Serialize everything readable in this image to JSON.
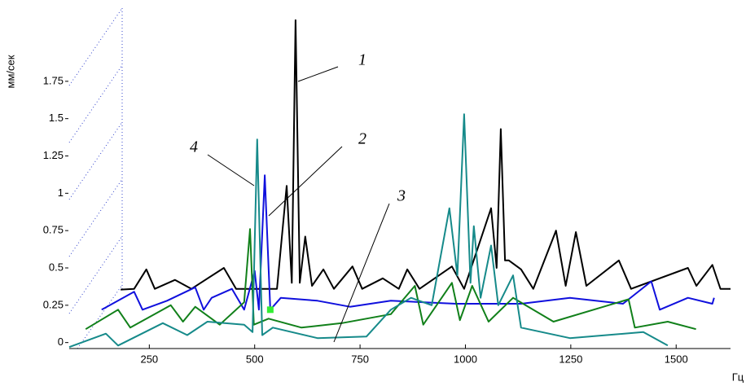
{
  "chart_data": {
    "type": "line",
    "y_label": "мм/сек",
    "x_label": "Гц",
    "xlim": [
      60,
      1629
    ],
    "ylim": [
      -0.04,
      2.24
    ],
    "xticks": [
      250,
      500,
      750,
      1000,
      1250,
      1500
    ],
    "yticks": [
      0,
      0.25,
      0.5,
      0.75,
      1,
      1.25,
      1.5,
      1.75
    ],
    "annotations": [
      "1",
      "2",
      "3",
      "4"
    ],
    "highlight_point": [
      1,
      12
    ],
    "highlight_color": "#33ee33",
    "series": [
      {
        "color": "#000000",
        "x": [
          182,
          214,
          243,
          263,
          311,
          350,
          427,
          456,
          553,
          576,
          588,
          597,
          607,
          620,
          636,
          663,
          688,
          732,
          755,
          804,
          842,
          862,
          891,
          968,
          997,
          1061,
          1074,
          1084,
          1094,
          1103,
          1132,
          1161,
          1215,
          1238,
          1262,
          1287,
          1364,
          1393,
          1528,
          1548,
          1586,
          1605,
          1629
        ],
        "values": [
          0.355,
          0.36,
          0.49,
          0.36,
          0.42,
          0.36,
          0.5,
          0.36,
          0.36,
          1.05,
          0.4,
          2.16,
          0.4,
          0.71,
          0.38,
          0.49,
          0.36,
          0.51,
          0.36,
          0.43,
          0.36,
          0.49,
          0.36,
          0.51,
          0.36,
          0.9,
          0.5,
          1.43,
          0.55,
          0.55,
          0.49,
          0.36,
          0.75,
          0.38,
          0.74,
          0.38,
          0.55,
          0.36,
          0.5,
          0.38,
          0.52,
          0.36,
          0.36
        ]
      },
      {
        "color": "#1010dd",
        "x": [
          137,
          214,
          234,
          292,
          359,
          379,
          398,
          446,
          475,
          500,
          510,
          524,
          537,
          562,
          649,
          726,
          823,
          978,
          1132,
          1248,
          1374,
          1441,
          1461,
          1528,
          1586,
          1590
        ],
        "values": [
          0.22,
          0.34,
          0.22,
          0.28,
          0.37,
          0.22,
          0.3,
          0.36,
          0.22,
          0.48,
          0.22,
          1.12,
          0.22,
          0.3,
          0.28,
          0.24,
          0.28,
          0.26,
          0.26,
          0.3,
          0.26,
          0.41,
          0.22,
          0.3,
          0.26,
          0.3
        ]
      },
      {
        "color": "#11801a",
        "x": [
          99,
          176,
          205,
          301,
          330,
          359,
          417,
          475,
          489,
          498,
          533,
          611,
          707,
          823,
          880,
          900,
          968,
          987,
          1016,
          1055,
          1113,
          1209,
          1387,
          1402,
          1480,
          1547
        ],
        "values": [
          0.09,
          0.22,
          0.1,
          0.25,
          0.14,
          0.24,
          0.12,
          0.27,
          0.76,
          0.12,
          0.16,
          0.1,
          0.13,
          0.19,
          0.38,
          0.12,
          0.4,
          0.15,
          0.38,
          0.14,
          0.3,
          0.14,
          0.29,
          0.1,
          0.14,
          0.09
        ]
      },
      {
        "color": "#168a8a",
        "x": [
          60,
          147,
          176,
          282,
          340,
          388,
          475,
          495,
          506,
          518,
          543,
          649,
          765,
          823,
          871,
          920,
          962,
          981,
          997,
          1012,
          1020,
          1036,
          1061,
          1078,
          1113,
          1132,
          1248,
          1422,
          1480
        ],
        "values": [
          -0.03,
          0.06,
          -0.02,
          0.13,
          0.05,
          0.14,
          0.12,
          0.07,
          1.36,
          0.05,
          0.1,
          0.03,
          0.04,
          0.22,
          0.3,
          0.25,
          0.9,
          0.45,
          1.53,
          0.4,
          0.78,
          0.3,
          0.65,
          0.25,
          0.45,
          0.1,
          0.03,
          0.07,
          -0.02
        ]
      }
    ]
  }
}
